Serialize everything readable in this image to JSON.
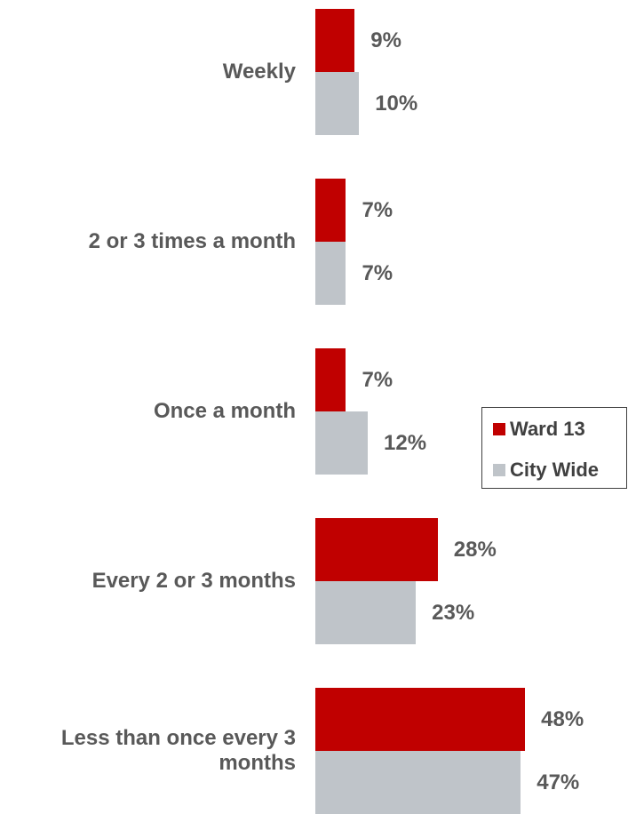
{
  "chart_data": {
    "type": "bar",
    "orientation": "horizontal",
    "categories": [
      "Weekly",
      "2 or 3 times a month",
      "Once a month",
      "Every 2 or 3 months",
      "Less than once every 3 months"
    ],
    "series": [
      {
        "name": "Ward 13",
        "color": "#c00000",
        "values": [
          9,
          7,
          7,
          28,
          48
        ],
        "value_labels": [
          "9%",
          "7%",
          "7%",
          "28%",
          "48%"
        ]
      },
      {
        "name": "City Wide",
        "color": "#bfc4c9",
        "values": [
          10,
          7,
          12,
          23,
          47
        ],
        "value_labels": [
          "10%",
          "7%",
          "12%",
          "23%",
          "47%"
        ]
      }
    ],
    "legend": "right"
  }
}
